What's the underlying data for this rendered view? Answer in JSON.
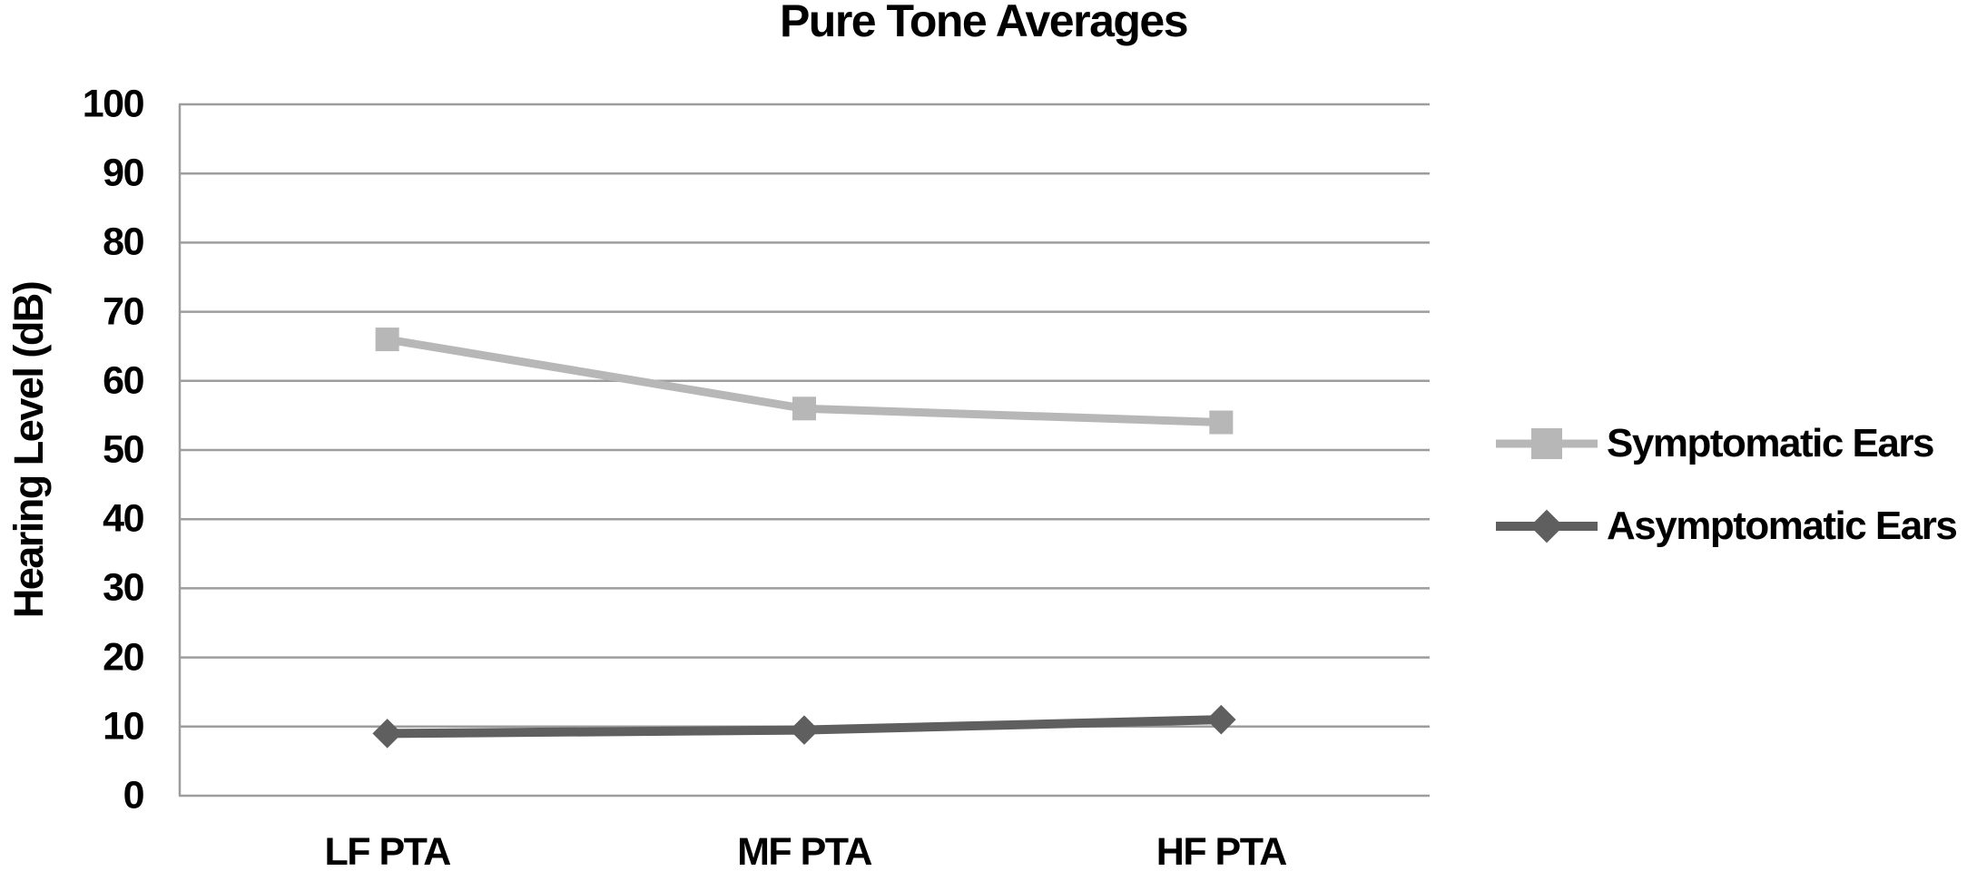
{
  "chart_data": {
    "type": "line",
    "title": "Pure Tone Averages",
    "xlabel": "",
    "ylabel": "Hearing Level (dB)",
    "categories": [
      "LF PTA",
      "MF PTA",
      "HF PTA"
    ],
    "series": [
      {
        "name": "Symptomatic Ears",
        "marker": "square",
        "color": "#b7b7b7",
        "line_width": 9,
        "values": [
          66,
          56,
          54
        ]
      },
      {
        "name": "Asymptomatic Ears",
        "marker": "diamond",
        "color": "#5f5f5f",
        "line_width": 10,
        "values": [
          9,
          9.5,
          11
        ]
      }
    ],
    "ylim": [
      0,
      100
    ],
    "yticks": [
      0,
      10,
      20,
      30,
      40,
      50,
      60,
      70,
      80,
      90,
      100
    ],
    "grid": "horizontal",
    "legend_position": "right",
    "colors": {
      "gridline": "#9d9d9d",
      "axis_line": "#9d9d9d",
      "text": "#000000",
      "background": "#ffffff"
    }
  }
}
